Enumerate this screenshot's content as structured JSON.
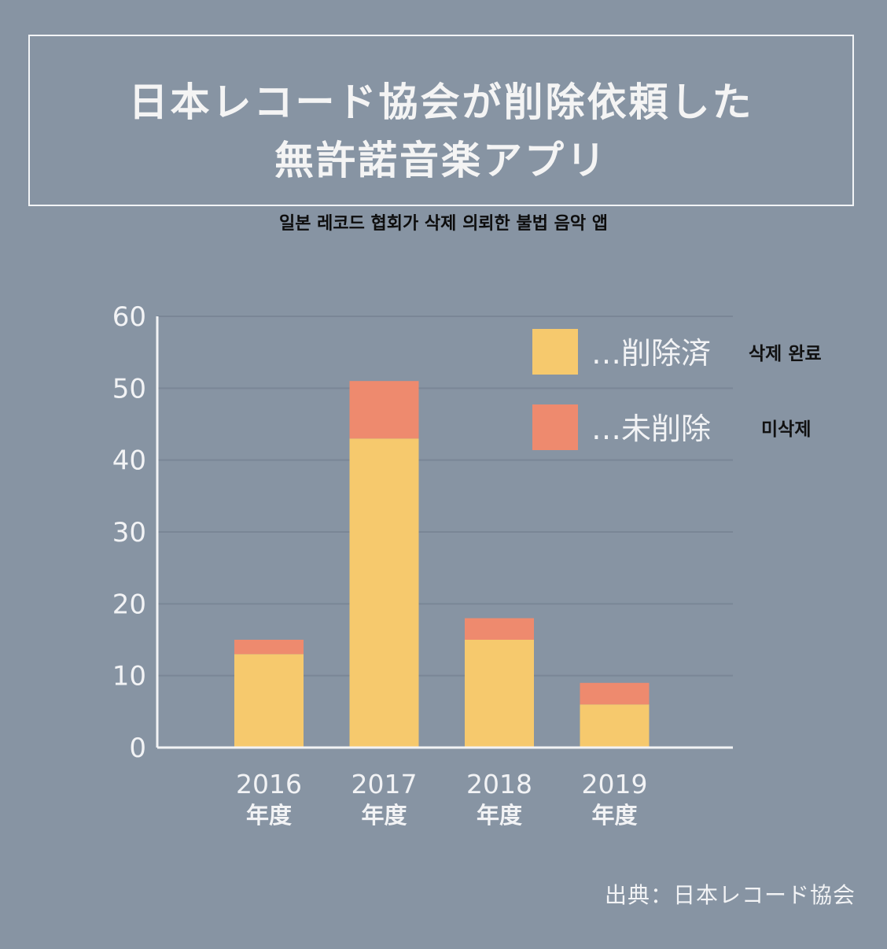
{
  "title": {
    "line1": "日本レコード協会が削除依頼した",
    "line2": "無許諾音楽アプリ"
  },
  "subtitle_kr": "일본 레코드 협회가 삭제 의뢰한 불법 음악 앱",
  "colors": {
    "deleted": "#f6c96d",
    "not_deleted": "#ee8a6e",
    "background": "#8794a3",
    "gridline": "#7a8696",
    "axis": "#f2f3f5"
  },
  "chart_data": {
    "type": "bar",
    "stacked": true,
    "categories": [
      "2016",
      "2017",
      "2018",
      "2019"
    ],
    "category_suffix": "年度",
    "series": [
      {
        "name": "削除済",
        "name_kr": "삭제 완료",
        "values": [
          13,
          43,
          15,
          6
        ]
      },
      {
        "name": "未削除",
        "name_kr": "미삭제",
        "values": [
          2,
          8,
          3,
          3
        ]
      }
    ],
    "yticks": [
      "0",
      "10",
      "20",
      "30",
      "40",
      "50",
      "60"
    ],
    "ylim": [
      0,
      60
    ],
    "grid": true,
    "legend_position": "top-right",
    "legend_prefix": "…"
  },
  "source": "出典：日本レコード協会"
}
